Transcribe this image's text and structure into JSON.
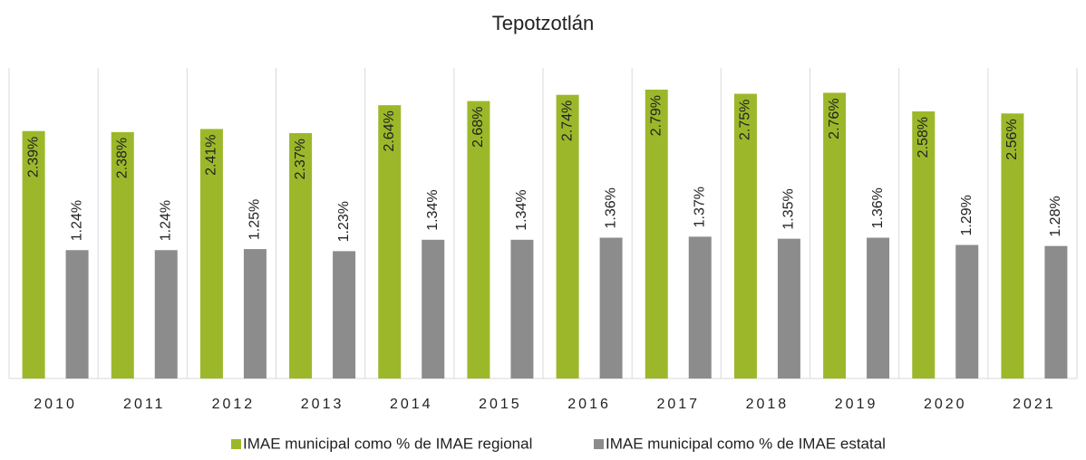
{
  "chart_data": {
    "type": "bar",
    "title": "Tepotzotlán",
    "categories": [
      "2010",
      "2011",
      "2012",
      "2013",
      "2014",
      "2015",
      "2016",
      "2017",
      "2018",
      "2019",
      "2020",
      "2021"
    ],
    "series": [
      {
        "name": "IMAE municipal como % de IMAE regional",
        "color": "#9cb82a",
        "values": [
          2.39,
          2.38,
          2.41,
          2.37,
          2.64,
          2.68,
          2.74,
          2.79,
          2.75,
          2.76,
          2.58,
          2.56
        ],
        "value_labels": [
          "2.39%",
          "2.38%",
          "2.41%",
          "2.37%",
          "2.64%",
          "2.68%",
          "2.74%",
          "2.79%",
          "2.75%",
          "2.76%",
          "2.58%",
          "2.56%"
        ]
      },
      {
        "name": "IMAE municipal como % de IMAE estatal",
        "color": "#8c8c8c",
        "values": [
          1.24,
          1.24,
          1.25,
          1.23,
          1.34,
          1.34,
          1.36,
          1.37,
          1.35,
          1.36,
          1.29,
          1.28
        ],
        "value_labels": [
          "1.24%",
          "1.24%",
          "1.25%",
          "1.23%",
          "1.34%",
          "1.34%",
          "1.36%",
          "1.37%",
          "1.35%",
          "1.36%",
          "1.29%",
          "1.28%"
        ]
      }
    ],
    "ylim": [
      0,
      3
    ]
  }
}
